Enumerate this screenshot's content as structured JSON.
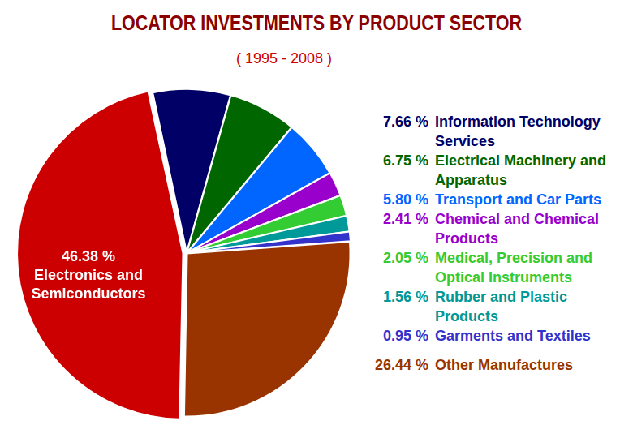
{
  "chart_data": {
    "type": "pie",
    "title": "LOCATOR INVESTMENTS BY PRODUCT SECTOR",
    "subtitle": "( 1995 - 2008 )",
    "categories": [
      "Information Technology Services",
      "Electrical Machinery and Apparatus",
      "Transport and Car Parts",
      "Chemical and Chemical Products",
      "Medical, Precision and Optical Instruments",
      "Rubber and Plastic Products",
      "Garments and Textiles",
      "Other Manufactures",
      "Electronics and Semiconductors"
    ],
    "values": [
      7.66,
      6.75,
      5.8,
      2.41,
      2.05,
      1.56,
      0.95,
      26.44,
      46.38
    ],
    "value_labels": [
      "7.66 %",
      "6.75 %",
      "5.80 %",
      "2.41 %",
      "2.05 %",
      "1.56 %",
      "0.95 %",
      "26.44 %",
      "46.38 %"
    ],
    "colors": [
      "#000066",
      "#006600",
      "#0066ff",
      "#9900cc",
      "#33cc33",
      "#009999",
      "#3333cc",
      "#993300",
      "#cc0000"
    ],
    "data_labels": true
  }
}
